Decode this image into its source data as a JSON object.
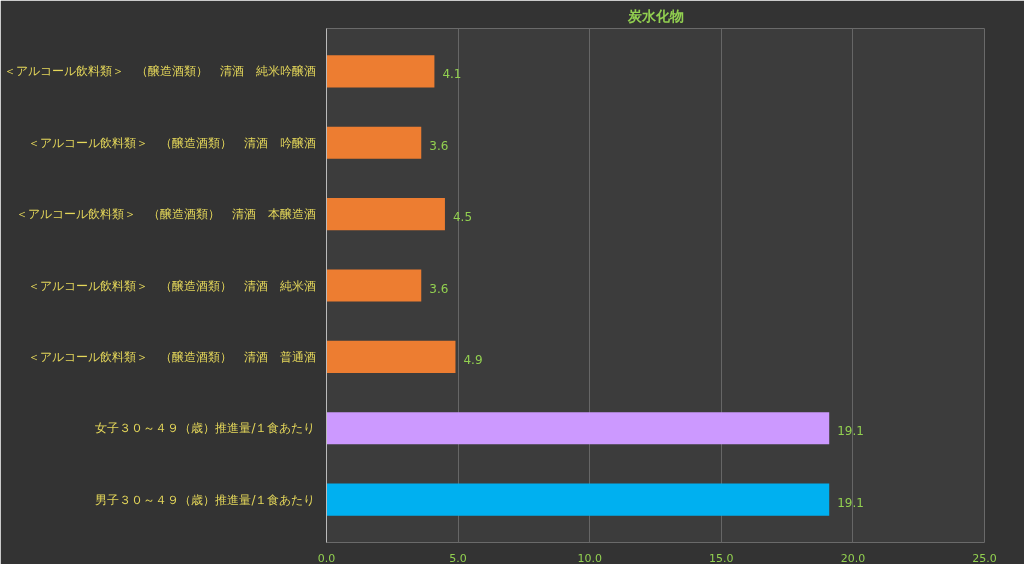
{
  "chart_data": {
    "type": "bar",
    "orientation": "horizontal",
    "title": "炭水化物",
    "categories": [
      "＜アルコール飲料類＞　（醸造酒類）　清酒　純米吟醸酒",
      "＜アルコール飲料類＞　（醸造酒類）　清酒　吟醸酒",
      "＜アルコール飲料類＞　（醸造酒類）　清酒　本醸造酒",
      "＜アルコール飲料類＞　（醸造酒類）　清酒　純米酒",
      "＜アルコール飲料類＞　（醸造酒類）　清酒　普通酒",
      "女子３０～４９（歳）推進量/１食あたり",
      "男子３０～４９（歳）推進量/１食あたり"
    ],
    "values": [
      4.1,
      3.6,
      4.5,
      3.6,
      4.9,
      19.1,
      19.1
    ],
    "colors": [
      "#ed7d31",
      "#ed7d31",
      "#ed7d31",
      "#ed7d31",
      "#ed7d31",
      "#cc99ff",
      "#00b0f0"
    ],
    "xlim": [
      0,
      25
    ],
    "xticks": [
      {
        "value": 0,
        "label": "0.0"
      },
      {
        "value": 5,
        "label": "5.0"
      },
      {
        "value": 10,
        "label": "10.0"
      },
      {
        "value": 15,
        "label": "15.0"
      },
      {
        "value": 20,
        "label": "20.0"
      },
      {
        "value": 25,
        "label": "25.0"
      }
    ],
    "grid": "x",
    "data_labels": true
  }
}
